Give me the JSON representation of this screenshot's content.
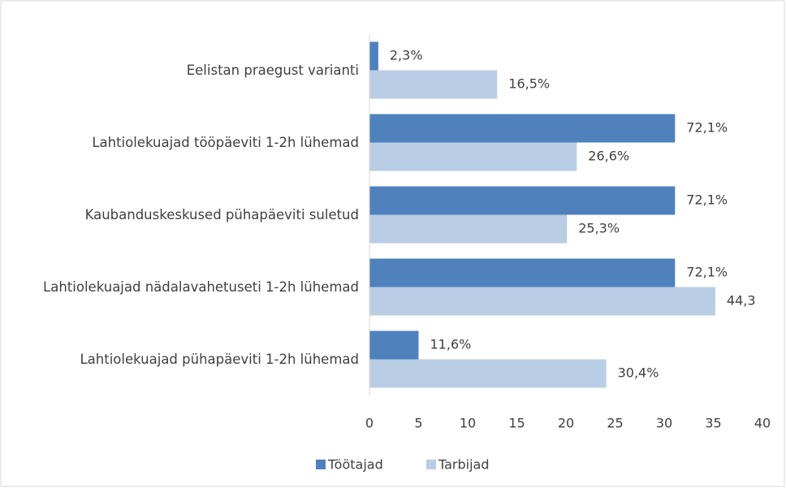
{
  "chart_data": {
    "type": "hbar",
    "categories": [
      "Eelistan praegust varianti",
      "Lahtiolekuajad tööpäeviti 1-2h lühemad",
      "Kaubanduskeskused pühapäeviti suletud",
      "Lahtiolekuajad nädalavahetuseti 1-2h lühemad",
      "Lahtiolekuajad pühapäeviti 1-2h lühemad"
    ],
    "series": [
      {
        "name": "Töötajad",
        "color": "#4f81bd",
        "values": [
          0.9,
          31.1,
          31.1,
          31.1,
          5.0
        ],
        "annotations": [
          "2,3%",
          "72,1%",
          "72,1%",
          "72,1%",
          "11,6%"
        ]
      },
      {
        "name": "Tarbijad",
        "color": "#b9cde5",
        "values": [
          13.0,
          21.1,
          20.1,
          35.2,
          24.1
        ],
        "annotations": [
          "16,5%",
          "26,6%",
          "25,3%",
          "44,3",
          "30,4%"
        ]
      }
    ],
    "xlim": [
      0,
      40
    ],
    "xticks": [
      0,
      5,
      10,
      15,
      20,
      25,
      30,
      35,
      40
    ],
    "grid": false,
    "legend": "bottom"
  }
}
